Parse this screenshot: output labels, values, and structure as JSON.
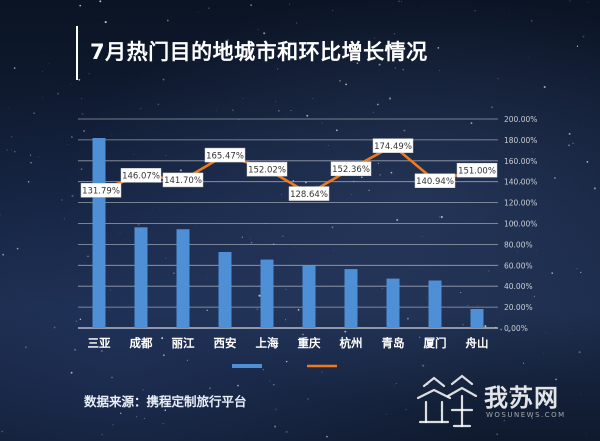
{
  "title": "7月热门目的地城市和环比增长情况",
  "source": "数据来源：携程定制旅行平台",
  "logo": {
    "name": "我苏网",
    "sub": "WOSUNEWS.COM"
  },
  "colors": {
    "bar": "#4f8fd6",
    "line": "#f07a1a",
    "text": "#ffffff",
    "grid": "rgba(255,255,255,0.55)",
    "label_bg": "#ffffff",
    "label_text": "#333333"
  },
  "chart_data": {
    "type": "bar+line",
    "categories": [
      "三亚",
      "成都",
      "丽江",
      "西安",
      "上海",
      "重庆",
      "杭州",
      "青岛",
      "厦门",
      "舟山"
    ],
    "series": [
      {
        "kind": "bar",
        "axis": "left",
        "values": [
          100,
          53,
          52,
          40,
          36,
          33,
          31,
          26,
          25,
          10
        ]
      },
      {
        "kind": "line",
        "axis": "right",
        "values": [
          131.79,
          146.07,
          141.7,
          165.47,
          152.02,
          128.64,
          152.36,
          174.49,
          140.94,
          151.0
        ]
      }
    ],
    "data_labels": [
      "131.79%",
      "146.07%",
      "141.70%",
      "165.47%",
      "152.02%",
      "128.64%",
      "152.36%",
      "174.49%",
      "140.94%",
      "151.00%"
    ],
    "y2_ticks": [
      "200.00%",
      "180.00%",
      "160.00%",
      "140.00%",
      "120.00%",
      "100.00%",
      "80.00%",
      "60.00%",
      "40.00%",
      "20.00%",
      "0.00%"
    ],
    "y2lim": [
      0,
      200
    ],
    "ylim": [
      0,
      110
    ],
    "grid": true,
    "legend": "bottom-center"
  }
}
